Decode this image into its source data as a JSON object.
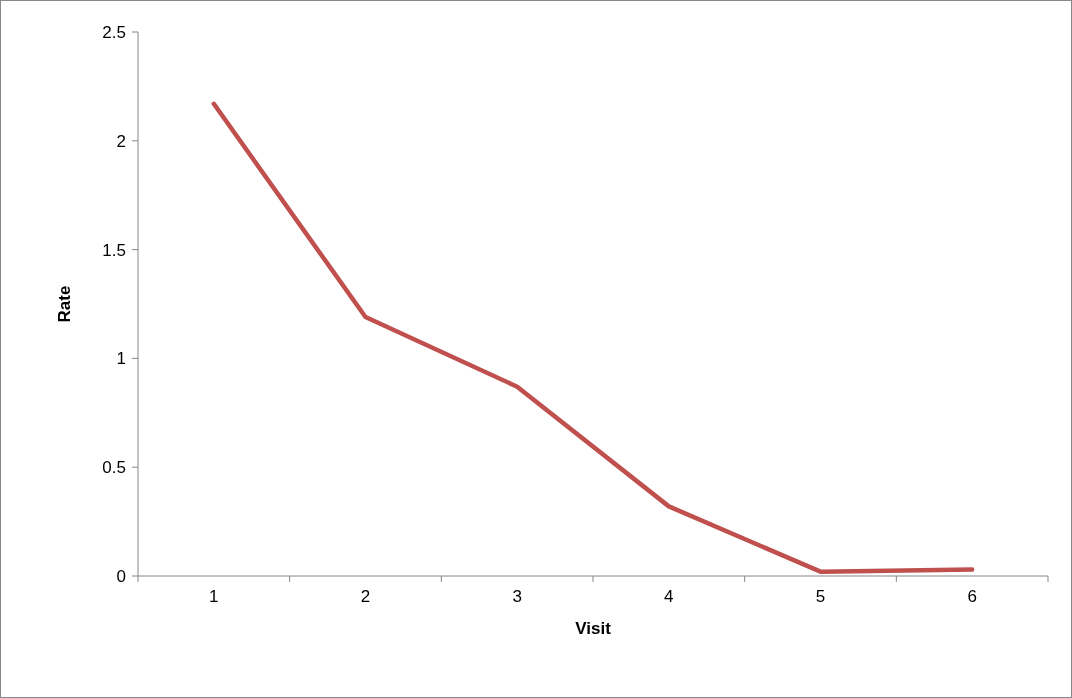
{
  "chart_data": {
    "type": "line",
    "xlabel": "Visit",
    "ylabel": "Rate",
    "categories": [
      "1",
      "2",
      "3",
      "4",
      "5",
      "6"
    ],
    "series": [
      {
        "color": "#c0504d",
        "values": [
          2.17,
          1.19,
          0.87,
          0.32,
          0.02,
          0.03
        ]
      }
    ],
    "ylim": [
      0,
      2.5
    ],
    "yticks": [
      0,
      0.5,
      1,
      1.5,
      2,
      2.5
    ],
    "grid": false,
    "marker": "none",
    "line_style": "solid"
  }
}
